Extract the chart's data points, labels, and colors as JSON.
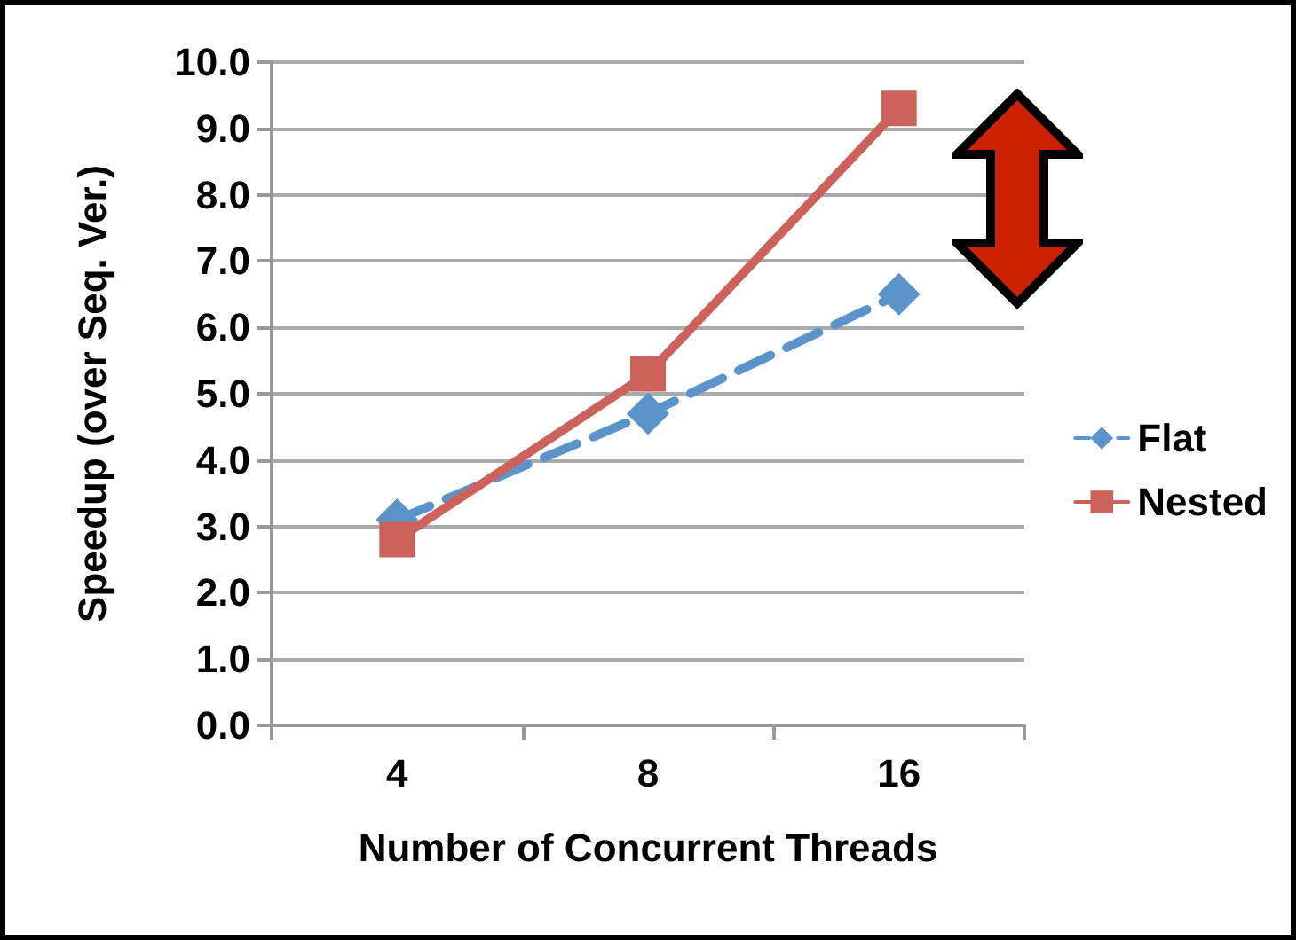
{
  "chart_data": {
    "type": "line",
    "xlabel": "Number of Concurrent Threads",
    "ylabel": "Speedup (over Seq. Ver.)",
    "categories": [
      "4",
      "8",
      "16"
    ],
    "series": [
      {
        "name": "Flat",
        "color": "#5b93cb",
        "values": [
          3.1,
          4.7,
          6.5
        ],
        "marker": "diamond",
        "line_style": "dashed"
      },
      {
        "name": "Nested",
        "color": "#cc625a",
        "values": [
          2.8,
          5.3,
          9.3
        ],
        "marker": "square",
        "line_style": "solid"
      }
    ],
    "ylim": [
      0,
      10
    ],
    "yticks": [
      {
        "value": 0,
        "label": "0.0"
      },
      {
        "value": 1,
        "label": "1.0"
      },
      {
        "value": 2,
        "label": "2.0"
      },
      {
        "value": 3,
        "label": "3.0"
      },
      {
        "value": 4,
        "label": "4.0"
      },
      {
        "value": 5,
        "label": "5.0"
      },
      {
        "value": 6,
        "label": "6.0"
      },
      {
        "value": 7,
        "label": "7.0"
      },
      {
        "value": 8,
        "label": "8.0"
      },
      {
        "value": 9,
        "label": "9.0"
      },
      {
        "value": 10,
        "label": "10.0"
      }
    ],
    "grid": "y",
    "legend": "right"
  }
}
